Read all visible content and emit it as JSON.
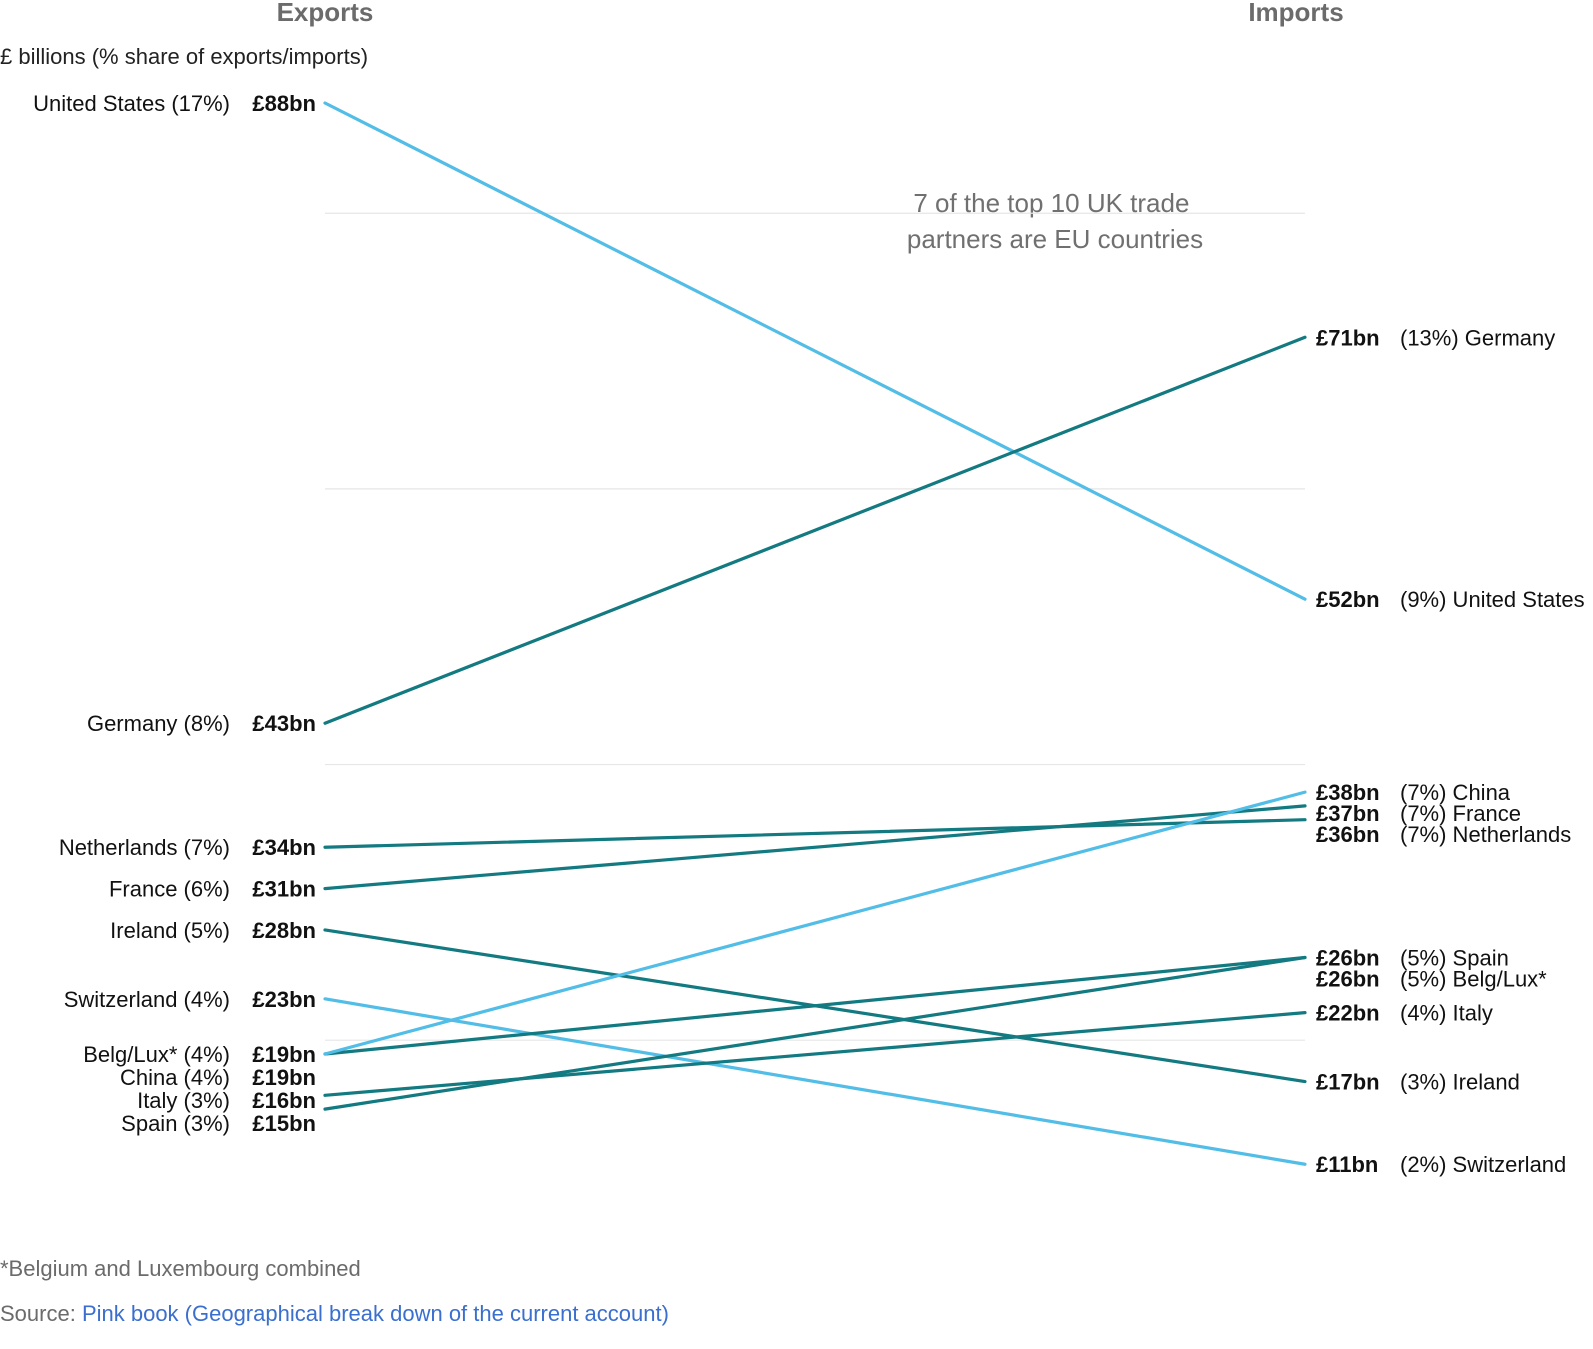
{
  "chart_data": {
    "type": "line",
    "subtype": "slope",
    "left_header": "Exports",
    "right_header": "Imports",
    "subtitle": "£ billions (% share of exports/imports)",
    "annotation": [
      "7 of the top 10 UK trade",
      "partners are EU countries"
    ],
    "x": [
      "Exports",
      "Imports"
    ],
    "ylim": [
      0,
      88
    ],
    "grid": true,
    "colors": {
      "eu": "#127a80",
      "non_eu": "#52bde6"
    },
    "series": [
      {
        "name": "United States",
        "group": "non_eu",
        "values": [
          88,
          52
        ],
        "left_label": "United States (17%)",
        "left_value": "£88bn",
        "right_value": "£52bn",
        "right_label": "(9%) United States"
      },
      {
        "name": "Germany",
        "group": "eu",
        "values": [
          43,
          71
        ],
        "left_label": "Germany (8%)",
        "left_value": "£43bn",
        "right_value": "£71bn",
        "right_label": "(13%) Germany"
      },
      {
        "name": "Netherlands",
        "group": "eu",
        "values": [
          34,
          36
        ],
        "left_label": "Netherlands (7%)",
        "left_value": "£34bn",
        "right_value": "£36bn",
        "right_label": "(7%) Netherlands"
      },
      {
        "name": "France",
        "group": "eu",
        "values": [
          31,
          37
        ],
        "left_label": "France (6%)",
        "left_value": "£31bn",
        "right_value": "£37bn",
        "right_label": "(7%) France"
      },
      {
        "name": "Ireland",
        "group": "eu",
        "values": [
          28,
          17
        ],
        "left_label": "Ireland (5%)",
        "left_value": "£28bn",
        "right_value": "£17bn",
        "right_label": "(3%) Ireland"
      },
      {
        "name": "Switzerland",
        "group": "non_eu",
        "values": [
          23,
          11
        ],
        "left_label": "Switzerland (4%)",
        "left_value": "£23bn",
        "right_value": "£11bn",
        "right_label": "(2%) Switzerland"
      },
      {
        "name": "Belg/Lux*",
        "group": "eu",
        "values": [
          19,
          26
        ],
        "left_label": "Belg/Lux* (4%)",
        "left_value": "£19bn",
        "right_value": "£26bn",
        "right_label": "(5%) Belg/Lux*"
      },
      {
        "name": "China",
        "group": "non_eu",
        "values": [
          19,
          38
        ],
        "left_label": "China (4%)",
        "left_value": "£19bn",
        "right_value": "£38bn",
        "right_label": "(7%) China"
      },
      {
        "name": "Italy",
        "group": "eu",
        "values": [
          16,
          22
        ],
        "left_label": "Italy (3%)",
        "left_value": "£16bn",
        "right_value": "£22bn",
        "right_label": "(4%) Italy"
      },
      {
        "name": "Spain",
        "group": "eu",
        "values": [
          15,
          26
        ],
        "left_label": "Spain (3%)",
        "left_value": "£15bn",
        "right_value": "£26bn",
        "right_label": "(5%) Spain"
      }
    ]
  },
  "footnote": "*Belgium and Luxembourg combined",
  "source": {
    "prefix": "Source: ",
    "link_text": "Pink book (Geographical break down of the current account)"
  }
}
